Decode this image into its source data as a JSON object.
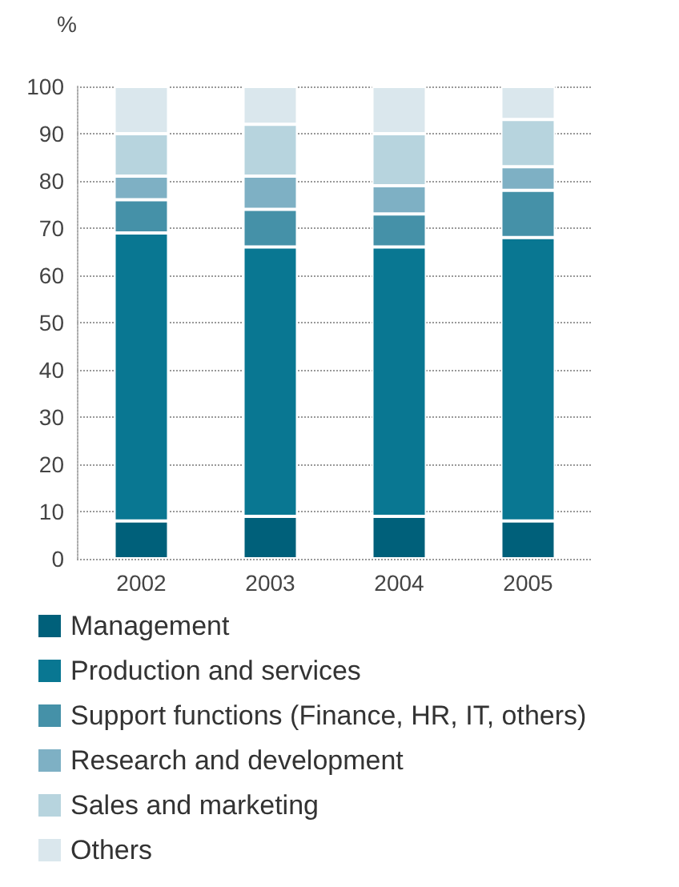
{
  "chart_data": {
    "type": "bar",
    "stacked": true,
    "ylabel": "%",
    "categories": [
      "2002",
      "2003",
      "2004",
      "2005"
    ],
    "series": [
      {
        "name": "Management",
        "color": "#00607a",
        "values": [
          8,
          9,
          9,
          8
        ]
      },
      {
        "name": "Production and services",
        "color": "#097792",
        "values": [
          61,
          57,
          57,
          60
        ]
      },
      {
        "name": "Support functions (Finance, HR, IT, others)",
        "color": "#4591a8",
        "values": [
          7,
          8,
          7,
          10
        ]
      },
      {
        "name": "Research and development",
        "color": "#7eb0c4",
        "values": [
          5,
          7,
          6,
          5
        ]
      },
      {
        "name": "Sales and marketing",
        "color": "#b7d4de",
        "values": [
          9,
          11,
          11,
          10
        ]
      },
      {
        "name": "Others",
        "color": "#dae7ed",
        "values": [
          10,
          8,
          10,
          7
        ]
      }
    ],
    "ylim": [
      0,
      100
    ],
    "yticks": [
      0,
      10,
      20,
      30,
      40,
      50,
      60,
      70,
      80,
      90,
      100
    ],
    "grid": "y",
    "legend": "bottom"
  }
}
